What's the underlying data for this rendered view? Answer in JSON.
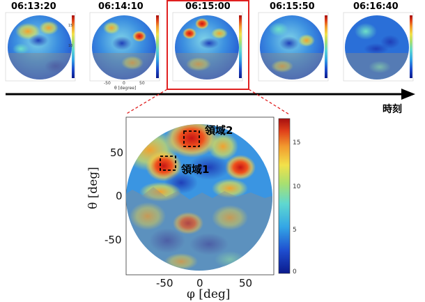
{
  "timeline": {
    "frames": [
      {
        "time": "06:13:20"
      },
      {
        "time": "06:14:10"
      },
      {
        "time": "06:15:00",
        "highlighted": true
      },
      {
        "time": "06:15:50"
      },
      {
        "time": "06:16:40"
      }
    ],
    "axis_label": "時刻",
    "small_axis": {
      "ticks": [
        "-50",
        "0",
        "50"
      ],
      "label": "θ [degree]"
    },
    "small_colorbar_ticks": [
      "15",
      "10",
      "5"
    ]
  },
  "main_plot": {
    "xlabel": "φ [deg]",
    "ylabel": "θ [deg]",
    "xticks": [
      "-50",
      "0",
      "50"
    ],
    "yticks": [
      "50",
      "0",
      "-50"
    ],
    "colorbar_ticks": [
      "15",
      "10",
      "5",
      "0"
    ],
    "regions": [
      {
        "label": "領域1"
      },
      {
        "label": "領域2"
      }
    ]
  },
  "colors": {
    "highlight_box": "#e02020",
    "connector": "#e02020",
    "colormap": [
      "#0b1a8c",
      "#1f4fd0",
      "#33a6e6",
      "#5fd8d0",
      "#a8e070",
      "#f2e14a",
      "#f29a2e",
      "#e0401a",
      "#a60f0f"
    ]
  }
}
